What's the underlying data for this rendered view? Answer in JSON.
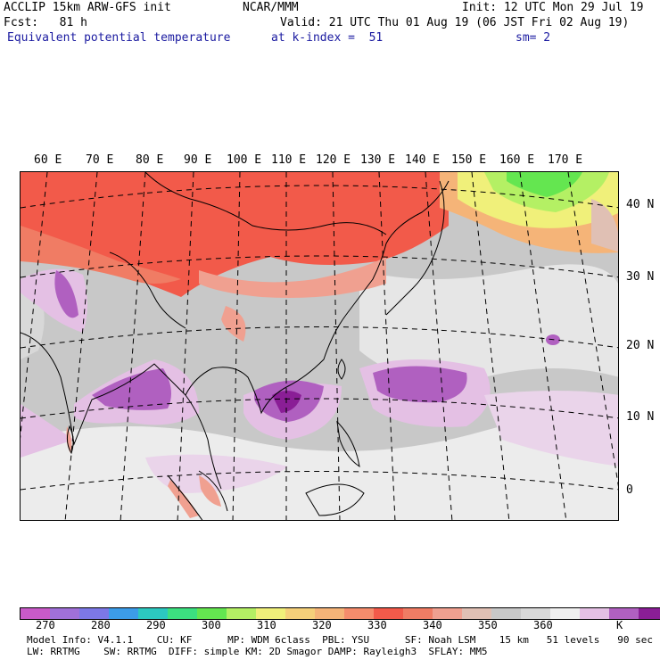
{
  "header": {
    "model": "ACCLIP 15km ARW-GFS init",
    "forecast": "Fcst:   81 h",
    "field": "Equivalent potential temperature",
    "center": "NCAR/MMM",
    "init": "Init: 12 UTC Mon 29 Jul 19",
    "valid": "Valid: 21 UTC Thu 01 Aug 19 (06 JST Fri 02 Aug 19)",
    "level": "at k-index =  51",
    "smoothing": "sm= 2"
  },
  "map": {
    "lon_labels": [
      "60 E",
      "70 E",
      "80 E",
      "90 E",
      "100 E",
      "110 E",
      "120 E",
      "130 E",
      "140 E",
      "150 E",
      "160 E",
      "170 E"
    ],
    "lat_labels": [
      "40 N",
      "30 N",
      "20 N",
      "10 N",
      "0"
    ]
  },
  "colorbar": {
    "unit": "K",
    "colors": [
      "#c85ac8",
      "#a070d8",
      "#7c78e6",
      "#3c9ce8",
      "#2cc8c0",
      "#3ce080",
      "#64e650",
      "#b4f064",
      "#f0f07a",
      "#f5d07a",
      "#f5b478",
      "#f58c6c",
      "#f25a4a",
      "#f07c64",
      "#f0a090",
      "#e0c0b4",
      "#c8c8c8",
      "#d8d8d8",
      "#f0f0f0",
      "#e4c0e4",
      "#b060c0",
      "#8a1e96"
    ],
    "ticks": [
      "270",
      "280",
      "290",
      "300",
      "310",
      "320",
      "330",
      "340",
      "350",
      "360"
    ]
  },
  "footer": {
    "line1": "Model Info: V4.1.1    CU: KF      MP: WDM 6class  PBL: YSU      SF: Noah LSM    15 km   51 levels   90 sec",
    "line2": "LW: RRTMG    SW: RRTMG  DIFF: simple KM: 2D Smagor DAMP: Rayleigh3  SFLAY: MM5"
  }
}
